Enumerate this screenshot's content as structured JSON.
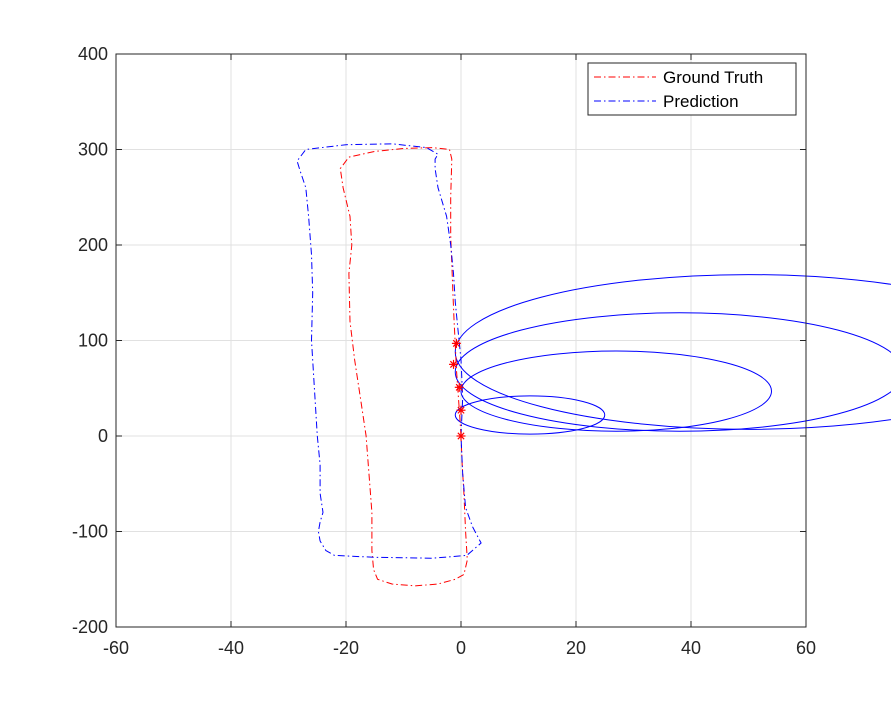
{
  "chart_data": {
    "type": "line",
    "title": "",
    "xlabel": "",
    "ylabel": "",
    "xlim": [
      -60,
      60
    ],
    "ylim": [
      -200,
      400
    ],
    "xticks": [
      -60,
      -40,
      -20,
      0,
      20,
      40,
      60
    ],
    "yticks": [
      -200,
      -100,
      0,
      100,
      200,
      300,
      400
    ],
    "xtick_labels": [
      "-60",
      "-40",
      "-20",
      "0",
      "20",
      "40",
      "60"
    ],
    "ytick_labels": [
      "-200",
      "-100",
      "0",
      "100",
      "200",
      "300",
      "400"
    ],
    "grid": true,
    "legend_position": "top-right",
    "series": [
      {
        "name": "Ground Truth",
        "color": "#ff0000",
        "style": "dash-dot",
        "x": [
          0,
          -0.2,
          -0.5,
          -0.8,
          -1.0,
          -1.2,
          -1.4,
          -1.6,
          -1.8,
          -1.8,
          -1.6,
          -2,
          -5,
          -10,
          -15,
          -19.5,
          -21,
          -20.5,
          -19.3,
          -19,
          -19.5,
          -19.3,
          -18.5,
          -17.5,
          -16.5,
          -16,
          -15.5,
          -15.5,
          -15.2,
          -14.5,
          -12,
          -8,
          -4,
          -1,
          0.5,
          1.1,
          0.8,
          0.5,
          0.2,
          0
        ],
        "y": [
          0,
          20,
          45,
          70,
          95,
          120,
          150,
          180,
          210,
          250,
          290,
          300,
          302,
          301,
          298,
          292,
          280,
          260,
          230,
          200,
          170,
          120,
          80,
          40,
          0,
          -40,
          -80,
          -120,
          -140,
          -150,
          -155,
          -157,
          -155,
          -150,
          -145,
          -130,
          -100,
          -60,
          -30,
          0
        ]
      },
      {
        "name": "Prediction",
        "color": "#0000ff",
        "style": "dash-dot",
        "x": [
          0,
          0.3,
          0,
          -0.5,
          -1.0,
          -1.3,
          -1.8,
          -2.5,
          -4,
          -4.5,
          -4.5,
          -4,
          -6,
          -12,
          -20,
          -27,
          -28.5,
          -28,
          -27,
          -26.5,
          -26,
          -25.8,
          -26,
          -25.5,
          -25,
          -24.5,
          -24.5,
          -24,
          -24.5,
          -24.8,
          -24.5,
          -23.5,
          -22,
          -15,
          -5,
          1,
          3.5,
          2,
          0.8,
          0.3,
          0
        ],
        "y": [
          0,
          40,
          80,
          110,
          140,
          170,
          200,
          230,
          260,
          280,
          290,
          295,
          302,
          306,
          305,
          300,
          288,
          278,
          260,
          230,
          190,
          150,
          100,
          50,
          0,
          -30,
          -60,
          -80,
          -90,
          -100,
          -110,
          -120,
          -125,
          -127,
          -128,
          -125,
          -112,
          -95,
          -75,
          -40,
          0
        ]
      }
    ],
    "ellipses": [
      {
        "cx": 12,
        "cy": 22,
        "rx": 13,
        "ry": 20,
        "color": "#0000ff"
      },
      {
        "cx": 27,
        "cy": 47,
        "rx": 27,
        "ry": 42,
        "color": "#0000ff"
      },
      {
        "cx": 38,
        "cy": 67,
        "rx": 39,
        "ry": 62,
        "color": "#0000ff"
      },
      {
        "cx": 50,
        "cy": 88,
        "rx": 51,
        "ry": 81,
        "color": "#0000ff"
      }
    ],
    "markers": {
      "symbol": "*",
      "color": "#ff0000",
      "x": [
        0,
        0,
        -0.3,
        -1.3,
        -0.8
      ],
      "y": [
        0,
        27,
        51,
        75,
        97
      ]
    }
  }
}
